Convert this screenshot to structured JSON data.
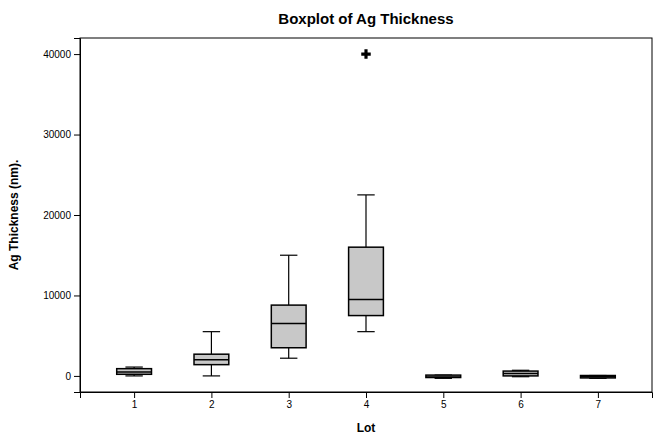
{
  "chart_data": {
    "type": "box",
    "title": "Boxplot of Ag Thickness",
    "xlabel": "Lot",
    "ylabel": "Ag Thickness (nm).",
    "x": [
      1,
      2,
      3,
      4,
      5,
      6,
      7
    ],
    "whislo": [
      0,
      0,
      2200,
      5500,
      -300,
      -100,
      -300
    ],
    "q1": [
      200,
      1400,
      3500,
      7500,
      -200,
      0,
      -250
    ],
    "med": [
      500,
      2000,
      6500,
      9500,
      -150,
      300,
      -100
    ],
    "q3": [
      900,
      2700,
      8800,
      16000,
      100,
      600,
      50
    ],
    "whishi": [
      1100,
      5500,
      15000,
      22500,
      100,
      700,
      50
    ],
    "fliers": [
      [],
      [],
      [],
      [
        40000
      ],
      [],
      [],
      []
    ],
    "color": "#c8c8c8",
    "marker": "plus",
    "xlim": [
      0.3,
      7.7
    ],
    "xticks": [
      1,
      2,
      3,
      4,
      5,
      6,
      7
    ],
    "ylim": [
      -2000,
      42000
    ],
    "yticks": [
      0,
      10000,
      20000,
      30000,
      40000
    ],
    "grid": false
  }
}
